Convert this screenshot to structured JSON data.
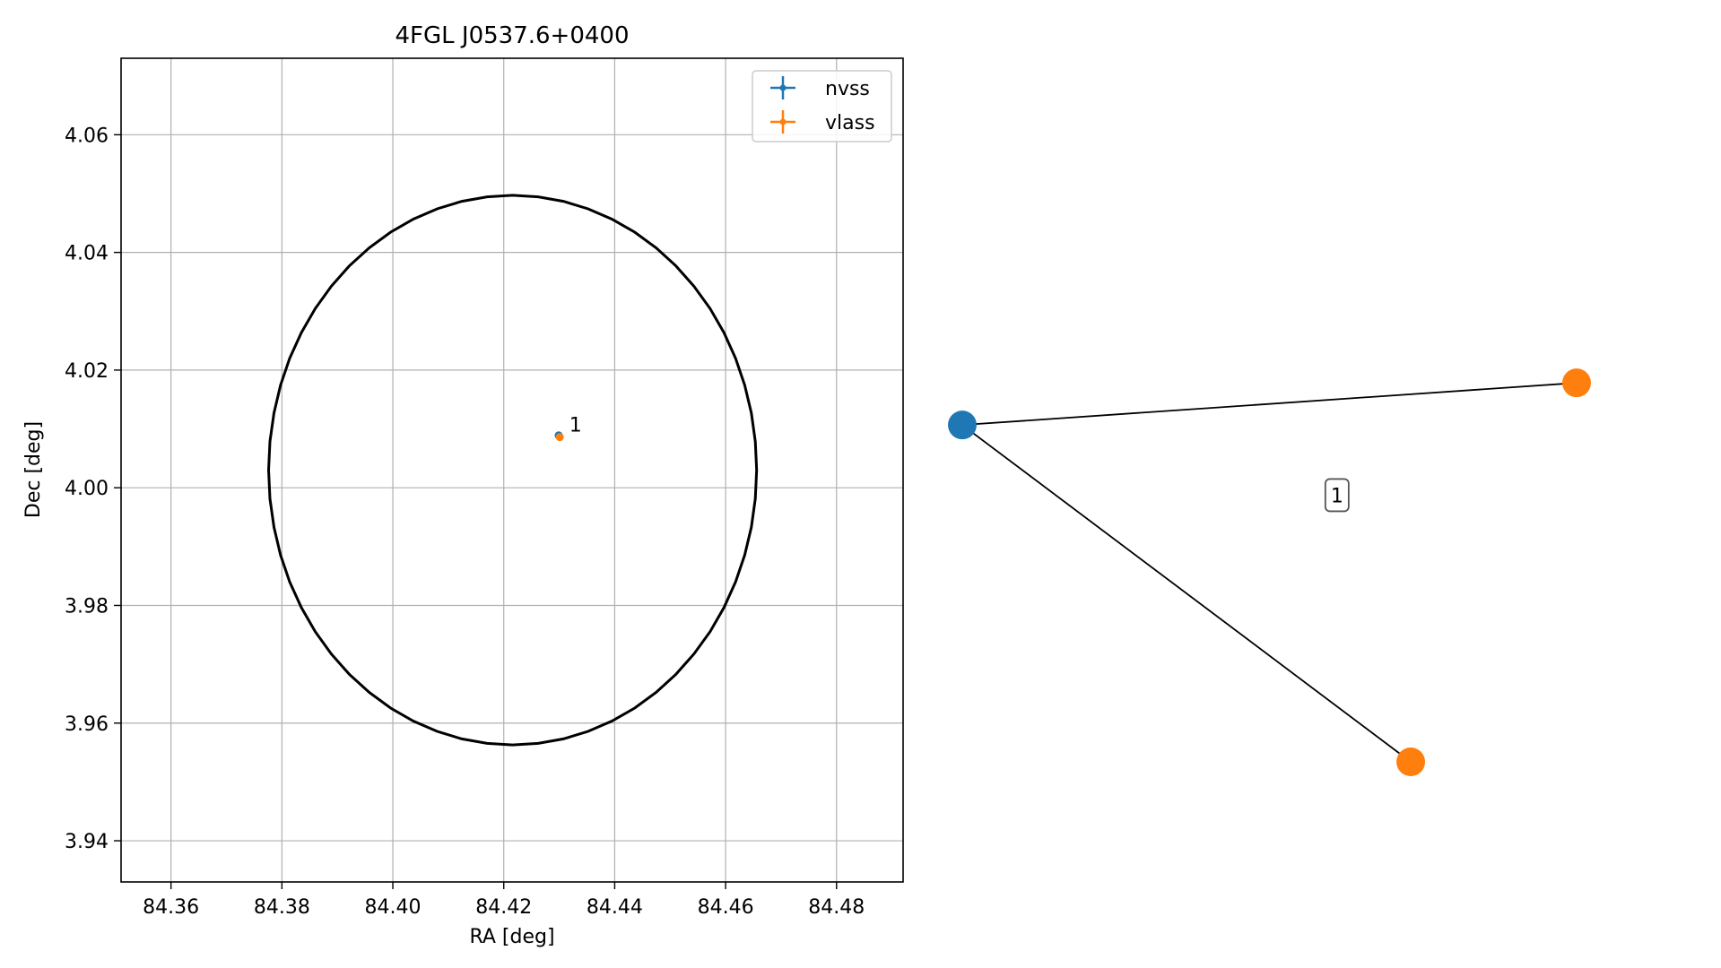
{
  "chart_data": [
    {
      "type": "scatter",
      "title": "4FGL J0537.6+0400",
      "xlabel": "RA [deg]",
      "ylabel": "Dec [deg]",
      "xlim": [
        84.351,
        84.492
      ],
      "ylim": [
        3.933,
        4.073
      ],
      "xticks": [
        84.36,
        84.38,
        84.4,
        84.42,
        84.44,
        84.46,
        84.48
      ],
      "xtick_labels": [
        "84.36",
        "84.38",
        "84.40",
        "84.42",
        "84.44",
        "84.46",
        "84.48"
      ],
      "yticks": [
        3.94,
        3.96,
        3.98,
        4.0,
        4.02,
        4.04,
        4.06
      ],
      "ytick_labels": [
        "3.94",
        "3.96",
        "3.98",
        "4.00",
        "4.02",
        "4.04",
        "4.06"
      ],
      "grid": true,
      "legend_position": "top-right",
      "series": [
        {
          "name": "nvss",
          "color": "#1f77b4",
          "points": [
            {
              "x": 84.4299,
              "y": 4.0089
            }
          ]
        },
        {
          "name": "vlass",
          "color": "#ff7f0e",
          "points": [
            {
              "x": 84.4301,
              "y": 4.0086
            }
          ]
        }
      ],
      "annotations": [
        {
          "text": "1",
          "x": 84.4318,
          "y": 4.0108
        }
      ],
      "ellipse": {
        "center": [
          84.4216,
          4.003
        ],
        "ra_semi_axis": 0.044,
        "dec_semi_axis": 0.0467,
        "color": "#000000"
      }
    },
    {
      "type": "network",
      "nodes": [
        {
          "id": "nvss-node",
          "color": "#1f77b4",
          "pos": [
            0.0,
            0.72
          ]
        },
        {
          "id": "vlass-node-1",
          "color": "#ff7f0e",
          "pos": [
            1.0,
            0.81
          ]
        },
        {
          "id": "vlass-node-2",
          "color": "#ff7f0e",
          "pos": [
            0.73,
            0.0
          ]
        }
      ],
      "edges": [
        {
          "source": "nvss-node",
          "target": "vlass-node-1"
        },
        {
          "source": "nvss-node",
          "target": "vlass-node-2"
        }
      ],
      "label": {
        "text": "1",
        "pos": [
          0.61,
          0.57
        ]
      }
    }
  ]
}
